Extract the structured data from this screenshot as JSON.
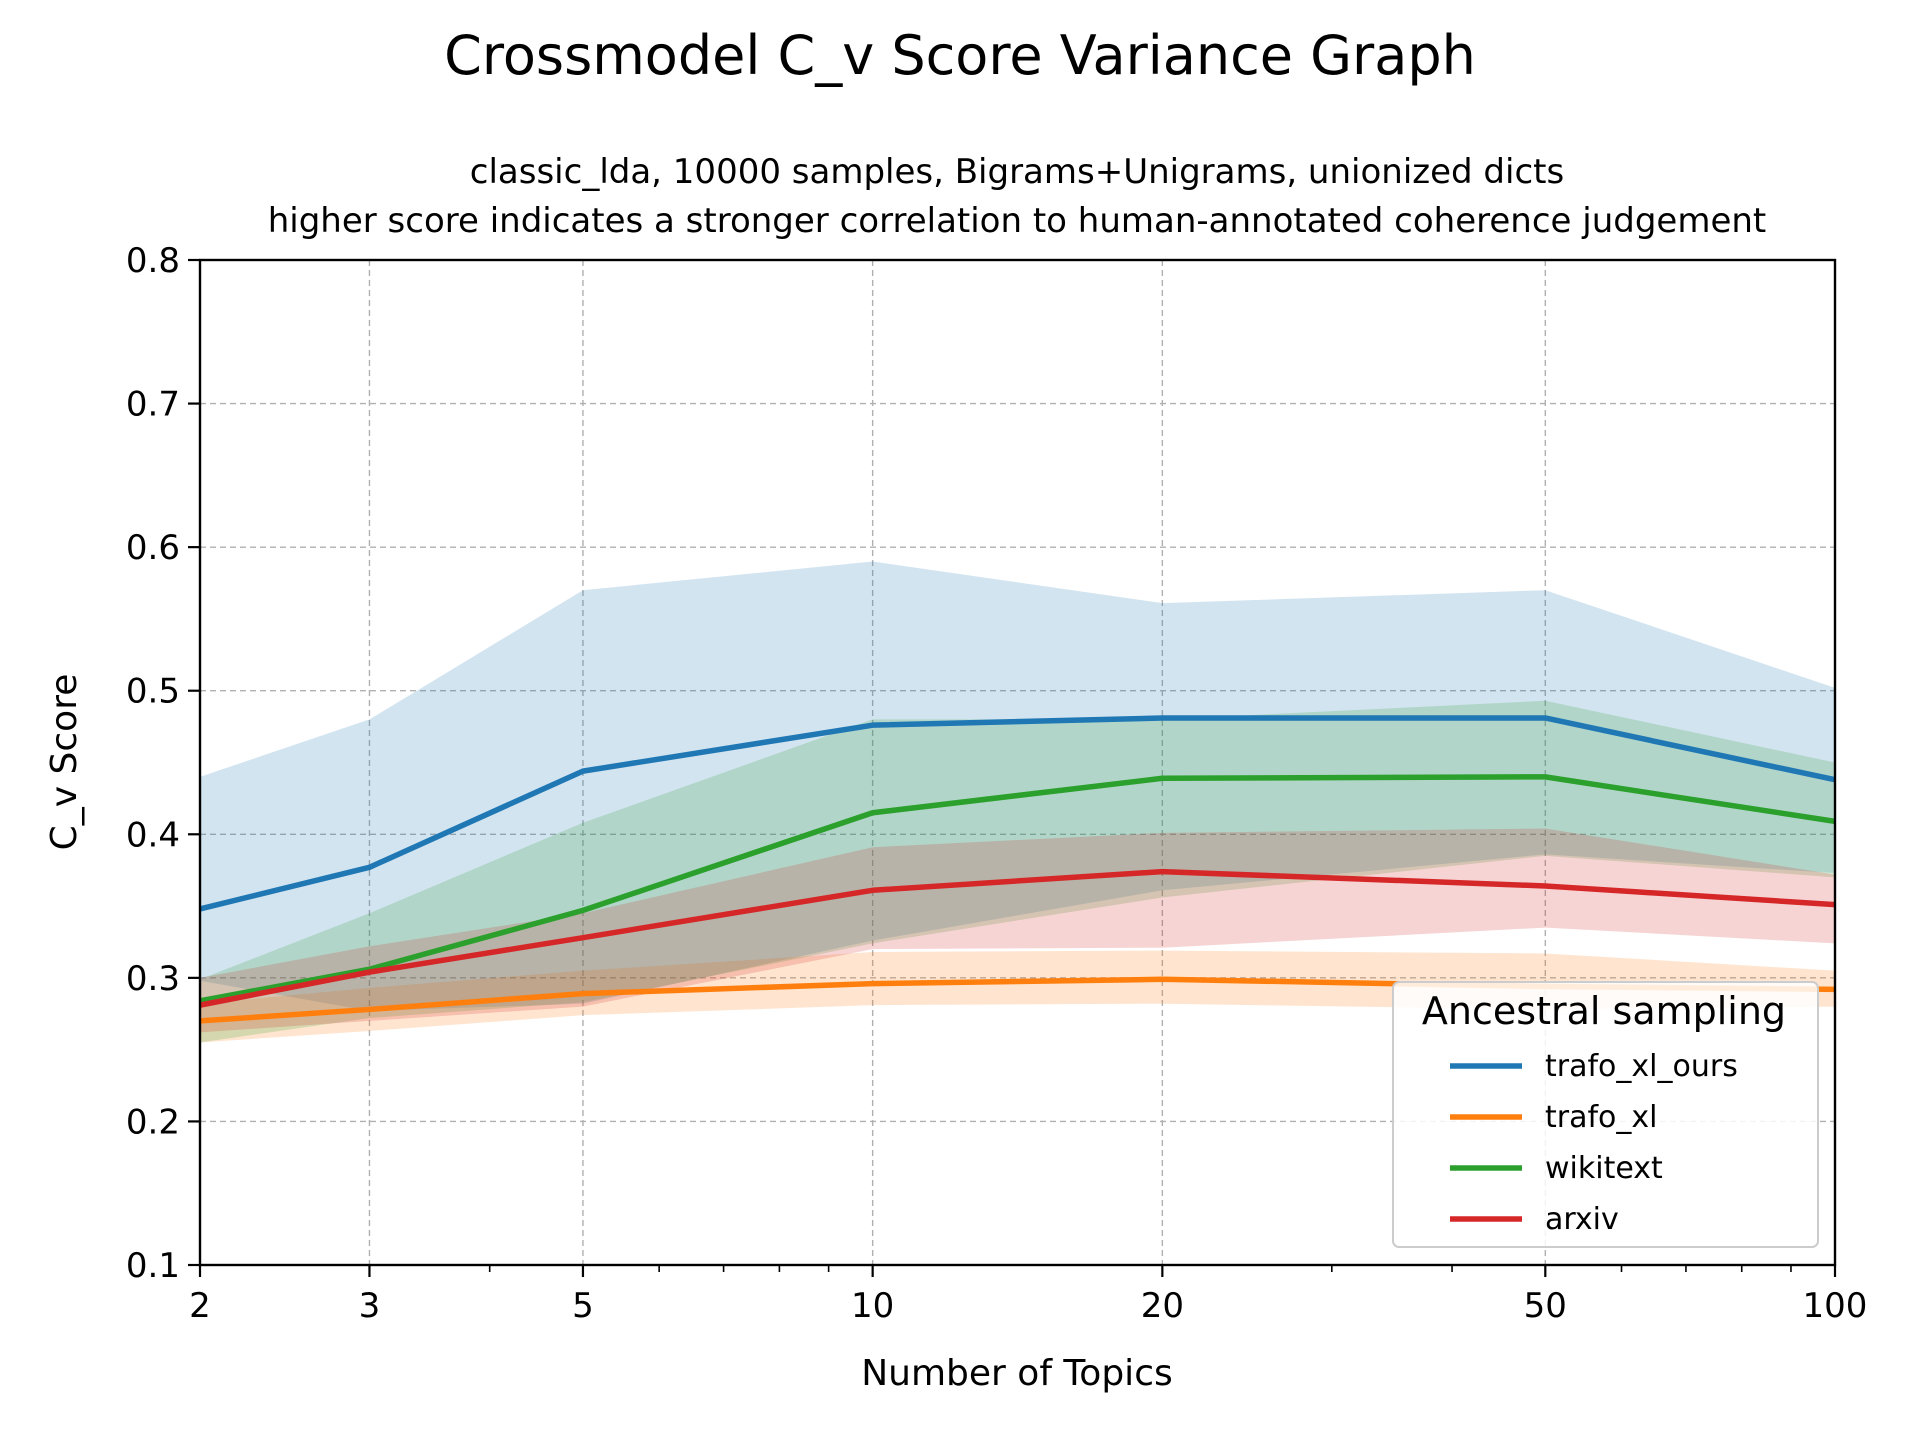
{
  "chart_data": {
    "type": "line",
    "title": "Crossmodel C_v Score Variance Graph",
    "subtitle_lines": [
      "classic_lda, 10000 samples, Bigrams+Unigrams, unionized dicts",
      "higher score indicates a stronger correlation to human-annotated coherence judgement"
    ],
    "xlabel": "Number of Topics",
    "ylabel": "C_v Score",
    "xscale": "log",
    "xlim": [
      2,
      100
    ],
    "ylim": [
      0.1,
      0.8
    ],
    "x": [
      2,
      3,
      5,
      10,
      20,
      50,
      100
    ],
    "x_tick_labels": [
      "2",
      "3",
      "5",
      "10",
      "20",
      "50",
      "100"
    ],
    "y_ticks": [
      0.1,
      0.2,
      0.3,
      0.4,
      0.5,
      0.6,
      0.7,
      0.8
    ],
    "y_tick_labels": [
      "0.1",
      "0.2",
      "0.3",
      "0.4",
      "0.5",
      "0.6",
      "0.7",
      "0.8"
    ],
    "grid": true,
    "legend": {
      "title": "Ancestral sampling",
      "placement": "lower-right"
    },
    "series": [
      {
        "name": "trafo_xl_ours",
        "color": "#1f77b4",
        "values": [
          0.348,
          0.377,
          0.444,
          0.476,
          0.481,
          0.481,
          0.438
        ],
        "lower": [
          0.298,
          0.277,
          0.282,
          0.326,
          0.361,
          0.386,
          0.373
        ],
        "upper": [
          0.44,
          0.48,
          0.57,
          0.59,
          0.561,
          0.57,
          0.502
        ]
      },
      {
        "name": "trafo_xl",
        "color": "#ff7f0e",
        "values": [
          0.27,
          0.278,
          0.289,
          0.296,
          0.299,
          0.294,
          0.292
        ],
        "lower": [
          0.255,
          0.263,
          0.274,
          0.281,
          0.282,
          0.278,
          0.28
        ],
        "upper": [
          0.282,
          0.293,
          0.305,
          0.318,
          0.319,
          0.317,
          0.305
        ]
      },
      {
        "name": "wikitext",
        "color": "#2ca02c",
        "values": [
          0.284,
          0.306,
          0.347,
          0.415,
          0.439,
          0.44,
          0.409
        ],
        "lower": [
          0.255,
          0.272,
          0.283,
          0.324,
          0.356,
          0.385,
          0.37
        ],
        "upper": [
          0.299,
          0.345,
          0.408,
          0.48,
          0.48,
          0.493,
          0.45
        ]
      },
      {
        "name": "arxiv",
        "color": "#d62728",
        "values": [
          0.281,
          0.304,
          0.328,
          0.361,
          0.374,
          0.364,
          0.351
        ],
        "lower": [
          0.262,
          0.27,
          0.28,
          0.32,
          0.321,
          0.335,
          0.324
        ],
        "upper": [
          0.3,
          0.322,
          0.345,
          0.391,
          0.401,
          0.404,
          0.372
        ]
      }
    ]
  }
}
